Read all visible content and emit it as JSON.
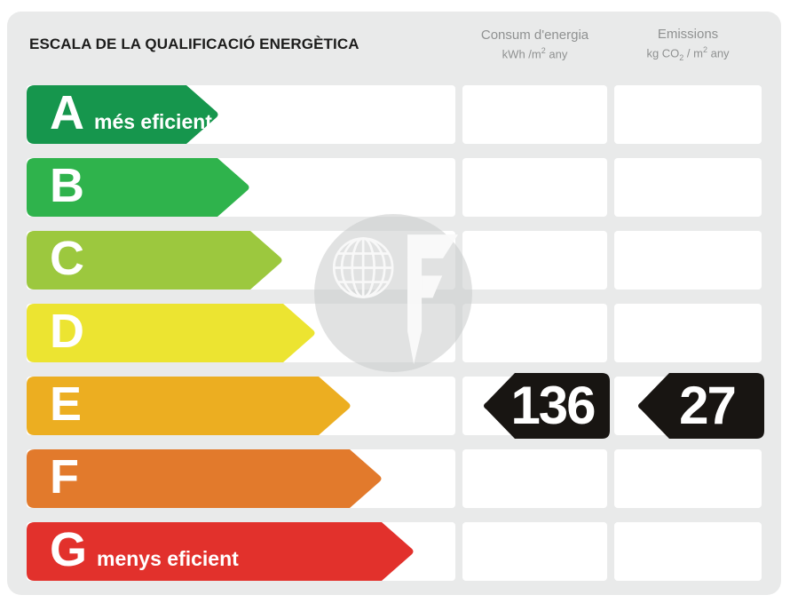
{
  "title": "ESCALA DE LA QUALIFICACIÓ ENERGÈTICA",
  "columns": {
    "consumption": {
      "label": "Consum d'energia",
      "unit_pre": "kWh /m",
      "unit_sup": "2",
      "unit_post": " any"
    },
    "emissions": {
      "label": "Emissions",
      "unit_pre": "kg CO",
      "unit_sub": "2",
      "unit_mid": " / m",
      "unit_sup": "2",
      "unit_post": " any"
    }
  },
  "scale": [
    {
      "letter": "A",
      "label": "més eficient",
      "color": "#16964d",
      "width_pct": 45.1
    },
    {
      "letter": "B",
      "label": "",
      "color": "#2fb34c",
      "width_pct": 52.4
    },
    {
      "letter": "C",
      "label": "",
      "color": "#9cc83e",
      "width_pct": 60.0
    },
    {
      "letter": "D",
      "label": "",
      "color": "#ece431",
      "width_pct": 67.7
    },
    {
      "letter": "E",
      "label": "",
      "color": "#ecae21",
      "width_pct": 76.0
    },
    {
      "letter": "F",
      "label": "",
      "color": "#e27a2c",
      "width_pct": 83.2
    },
    {
      "letter": "G",
      "label": "menys eficient",
      "color": "#e2312c",
      "width_pct": 90.7
    }
  ],
  "rating": {
    "letter": "E",
    "row_index": 4,
    "consumption_value": "136",
    "emissions_value": "27",
    "arrow_color": "#181512",
    "value_color": "#ffffff"
  },
  "watermark": {
    "name": "globe-f-portal-logo"
  },
  "chart_data": {
    "type": "bar",
    "title": "ESCALA DE LA QUALIFICACIÓ ENERGÈTICA",
    "categories": [
      "A",
      "B",
      "C",
      "D",
      "E",
      "F",
      "G"
    ],
    "series": [
      {
        "name": "scale-arrow-relative-length-pct",
        "values": [
          45.1,
          52.4,
          60.0,
          67.7,
          76.0,
          83.2,
          90.7
        ]
      }
    ],
    "category_labels": {
      "A": "més eficient",
      "G": "menys eficient"
    },
    "annotations": {
      "assigned_rating": "E",
      "consum_energia_kwh_m2_any": 136,
      "emissions_kg_co2_m2_any": 27
    },
    "legend_position": "none",
    "grid": false
  }
}
